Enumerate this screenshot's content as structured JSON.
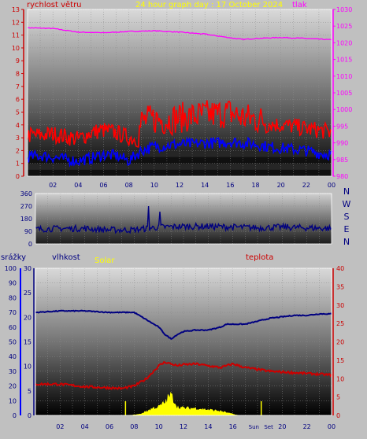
{
  "chart_data": [
    {
      "type": "line",
      "title": "24 hour graph day : 17 October 2024",
      "left_axis_label": "rychlost větru",
      "right_axis_label": "tlak",
      "x_ticks": [
        "02",
        "04",
        "06",
        "08",
        "10",
        "12",
        "14",
        "16",
        "18",
        "20",
        "22",
        "00"
      ],
      "left_ticks": [
        0,
        1,
        2,
        3,
        4,
        5,
        6,
        7,
        8,
        9,
        10,
        11,
        12,
        13
      ],
      "right_ticks": [
        980,
        985,
        990,
        995,
        1000,
        1005,
        1010,
        1015,
        1020,
        1025,
        1030
      ],
      "left_ylim": [
        0,
        13
      ],
      "right_ylim": [
        980,
        1030
      ],
      "xlim": [
        0,
        24
      ],
      "series": [
        {
          "key": "pressure",
          "axis": "right",
          "color": "#ff00ff",
          "x": [
            0,
            2,
            4,
            6,
            8,
            10,
            12,
            14,
            16,
            17,
            18,
            20,
            22,
            24
          ],
          "values": [
            1024.5,
            1024.3,
            1023.2,
            1023.0,
            1023.4,
            1023.6,
            1023.2,
            1022.6,
            1021.5,
            1021.0,
            1021.3,
            1021.6,
            1021.3,
            1020.9
          ]
        },
        {
          "key": "wind_gust",
          "axis": "left",
          "color": "#ff0000",
          "x": [
            0,
            1,
            2,
            3,
            4,
            5,
            6,
            7,
            8,
            8.7,
            9,
            10,
            11,
            12,
            13,
            14,
            15,
            16,
            17,
            18,
            19,
            20,
            21,
            22,
            23,
            24
          ],
          "values": [
            3.0,
            3.0,
            3.1,
            2.9,
            2.7,
            3.2,
            3.4,
            3.2,
            2.8,
            2.7,
            3.9,
            4.1,
            4.0,
            4.2,
            4.3,
            4.4,
            4.5,
            4.6,
            4.2,
            4.1,
            3.9,
            3.8,
            3.7,
            3.5,
            3.4,
            3.2
          ]
        },
        {
          "key": "wind_avg",
          "axis": "left",
          "color": "#0000ff",
          "x": [
            0,
            1,
            2,
            3,
            4,
            5,
            6,
            7,
            8,
            9,
            10,
            11,
            12,
            13,
            14,
            15,
            16,
            17,
            18,
            19,
            20,
            21,
            22,
            23,
            24
          ],
          "values": [
            1.5,
            1.6,
            1.5,
            1.3,
            1.2,
            1.4,
            1.7,
            1.6,
            1.2,
            2.0,
            2.3,
            2.4,
            2.5,
            2.5,
            2.6,
            2.6,
            2.7,
            2.6,
            2.5,
            2.3,
            2.2,
            2.1,
            2.0,
            1.8,
            1.7
          ]
        }
      ]
    },
    {
      "type": "line",
      "direction_ticks": [
        0,
        90,
        180,
        270,
        360
      ],
      "direction_labels": [
        "N",
        "W",
        "S",
        "E",
        "N"
      ],
      "ylim": [
        0,
        360
      ],
      "xlim": [
        0,
        24
      ],
      "series": [
        {
          "key": "wind_direction",
          "color": "#000080",
          "x": [
            0,
            2,
            4,
            6,
            8,
            10,
            12,
            14,
            16,
            18,
            20,
            22,
            24
          ],
          "values": [
            105,
            110,
            110,
            100,
            100,
            120,
            125,
            125,
            120,
            115,
            120,
            115,
            110
          ]
        }
      ]
    },
    {
      "type": "line",
      "labels": {
        "rain": "srážky",
        "humidity": "vlhkost",
        "solar": "Solar",
        "temperature": "teplota"
      },
      "x_ticks": [
        "02",
        "04",
        "06",
        "08",
        "10",
        "12",
        "14",
        "16",
        "Sun",
        "Set",
        "20",
        "22",
        "00"
      ],
      "rain_ticks": [
        0,
        10,
        20,
        30,
        40,
        50,
        60,
        70,
        80,
        90,
        100
      ],
      "humidity_ticks": [
        0,
        5,
        10,
        15,
        20,
        25,
        30
      ],
      "temperature_ticks": [
        0,
        5,
        10,
        15,
        20,
        25,
        30,
        35,
        40
      ],
      "rain_ylim": [
        0,
        100
      ],
      "temperature_ylim": [
        0,
        40
      ],
      "xlim": [
        0,
        24
      ],
      "marker_hours": [
        7.3,
        18.3
      ],
      "series": [
        {
          "key": "humidity",
          "axis": "rain",
          "color": "#000080",
          "x": [
            0,
            2,
            4,
            6,
            8,
            9,
            10,
            10.5,
            11,
            11.5,
            12,
            13,
            14,
            15,
            15.5,
            16,
            17,
            18,
            19,
            20,
            21,
            22,
            23,
            24
          ],
          "values": [
            70,
            71,
            71,
            70,
            70,
            65,
            60,
            55,
            52,
            55,
            57,
            58,
            58,
            60,
            62,
            62,
            62,
            64,
            66,
            67,
            68,
            68,
            69,
            69
          ]
        },
        {
          "key": "temperature",
          "axis": "temperature",
          "color": "#cc0000",
          "x": [
            0,
            2,
            4,
            6,
            7,
            8,
            9,
            10,
            10.5,
            11,
            11.5,
            12,
            13,
            14,
            15,
            16,
            17,
            18,
            19,
            20,
            21,
            22,
            23,
            24
          ],
          "values": [
            8.5,
            8.5,
            7.8,
            7.5,
            7.3,
            8.0,
            10.0,
            13.5,
            14.5,
            14.0,
            13.5,
            13.8,
            14.0,
            13.5,
            13.0,
            14.0,
            13.0,
            12.5,
            12.0,
            11.8,
            11.6,
            11.4,
            11.2,
            11.0
          ]
        },
        {
          "key": "solar",
          "axis": "rain",
          "color": "#ffff00",
          "x": [
            7.5,
            8.5,
            9,
            9.5,
            10,
            10.5,
            10.8,
            11,
            11.5,
            12,
            13,
            14,
            15,
            15.5,
            16,
            16.5
          ],
          "values": [
            0,
            1,
            3,
            5,
            6,
            9,
            13,
            14,
            6,
            5,
            5,
            4,
            3,
            2,
            1,
            0
          ]
        }
      ]
    }
  ]
}
